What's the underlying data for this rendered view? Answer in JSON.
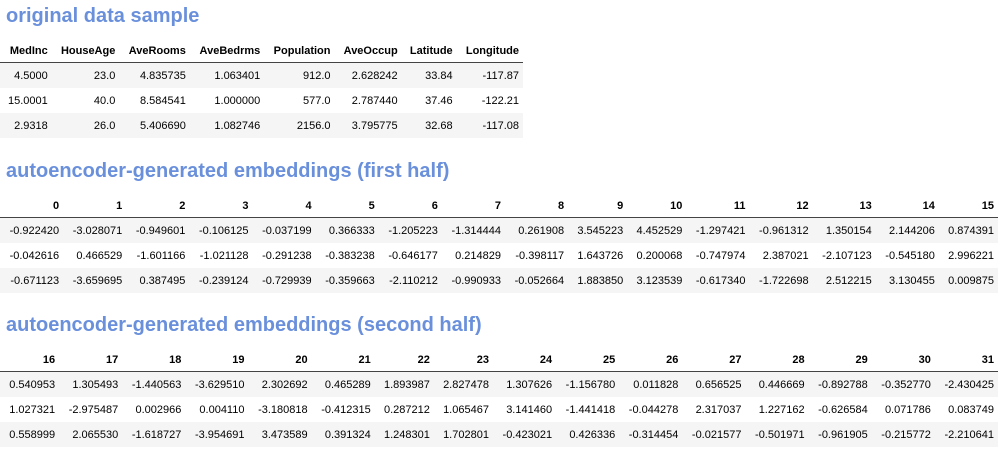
{
  "sections": [
    {
      "title": "original data sample",
      "columns": [
        "MedInc",
        "HouseAge",
        "AveRooms",
        "AveBedrms",
        "Population",
        "AveOccup",
        "Latitude",
        "Longitude"
      ],
      "rows": [
        [
          "4.5000",
          "23.0",
          "4.835735",
          "1.063401",
          "912.0",
          "2.628242",
          "33.84",
          "-117.87"
        ],
        [
          "15.0001",
          "40.0",
          "8.584541",
          "1.000000",
          "577.0",
          "2.787440",
          "37.46",
          "-122.21"
        ],
        [
          "2.9318",
          "26.0",
          "5.406690",
          "1.082746",
          "2156.0",
          "3.795775",
          "32.68",
          "-117.08"
        ]
      ]
    },
    {
      "title": "autoencoder-generated embeddings (first half)",
      "columns": [
        "0",
        "1",
        "2",
        "3",
        "4",
        "5",
        "6",
        "7",
        "8",
        "9",
        "10",
        "11",
        "12",
        "13",
        "14",
        "15"
      ],
      "rows": [
        [
          "-0.922420",
          "-3.028071",
          "-0.949601",
          "-0.106125",
          "-0.037199",
          "0.366333",
          "-1.205223",
          "-1.314444",
          "0.261908",
          "3.545223",
          "4.452529",
          "-1.297421",
          "-0.961312",
          "1.350154",
          "2.144206",
          "0.874391"
        ],
        [
          "-0.042616",
          "0.466529",
          "-1.601166",
          "-1.021128",
          "-0.291238",
          "-0.383238",
          "-0.646177",
          "0.214829",
          "-0.398117",
          "1.643726",
          "0.200068",
          "-0.747974",
          "2.387021",
          "-2.107123",
          "-0.545180",
          "2.996221"
        ],
        [
          "-0.671123",
          "-3.659695",
          "0.387495",
          "-0.239124",
          "-0.729939",
          "-0.359663",
          "-2.110212",
          "-0.990933",
          "-0.052664",
          "1.883850",
          "3.123539",
          "-0.617340",
          "-1.722698",
          "2.512215",
          "3.130455",
          "0.009875"
        ]
      ]
    },
    {
      "title": "autoencoder-generated embeddings (second half)",
      "columns": [
        "16",
        "17",
        "18",
        "19",
        "20",
        "21",
        "22",
        "23",
        "24",
        "25",
        "26",
        "27",
        "28",
        "29",
        "30",
        "31"
      ],
      "rows": [
        [
          "0.540953",
          "1.305493",
          "-1.440563",
          "-3.629510",
          "2.302692",
          "0.465289",
          "1.893987",
          "2.827478",
          "1.307626",
          "-1.156780",
          "0.011828",
          "0.656525",
          "0.446669",
          "-0.892788",
          "-0.352770",
          "-2.430425"
        ],
        [
          "1.027321",
          "-2.975487",
          "0.002966",
          "0.004110",
          "-3.180818",
          "-0.412315",
          "0.287212",
          "1.065467",
          "3.141460",
          "-1.441418",
          "-0.044278",
          "2.317037",
          "1.227162",
          "-0.626584",
          "0.071786",
          "0.083749"
        ],
        [
          "0.558999",
          "2.065530",
          "-1.618727",
          "-3.954691",
          "3.473589",
          "0.391324",
          "1.248301",
          "1.702801",
          "-0.423021",
          "0.426336",
          "-0.314454",
          "-0.021577",
          "-0.501971",
          "-0.961905",
          "-0.215772",
          "-2.210641"
        ]
      ]
    }
  ]
}
